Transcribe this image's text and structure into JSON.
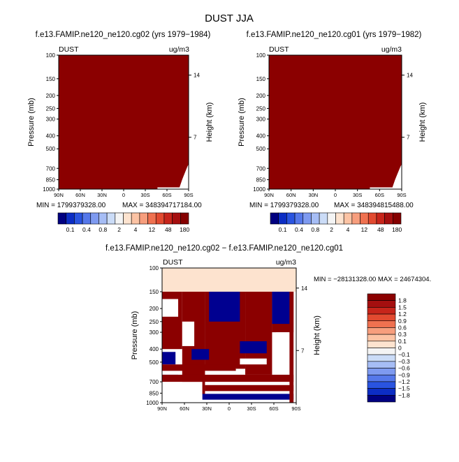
{
  "title": "DUST JJA",
  "panel_left": {
    "title": "f.e13.FAMIP.ne120_ne120.cg02 (yrs 1979−1984)",
    "var": "DUST",
    "units": "ug/m3",
    "min_text": "MIN = 1799379328.00",
    "max_text": "MAX = 348394717184.00"
  },
  "panel_right": {
    "title": "f.e13.FAMIP.ne120_ne120.cg01 (yrs 1979−1982)",
    "var": "DUST",
    "units": "ug/m3",
    "min_text": "MIN = 1799379328.00",
    "max_text": "MAX = 348394815488.00"
  },
  "panel_diff": {
    "title": "f.e13.FAMIP.ne120_ne120.cg02 − f.e13.FAMIP.ne120_ne120.cg01",
    "var": "DUST",
    "units": "ug/m3",
    "min_max_text": "MIN = −28131328.00   MAX = 24674304."
  },
  "chart_data": [
    {
      "type": "heatmap",
      "title": "f.e13.FAMIP.ne120_ne120.cg02 (yrs 1979−1984)",
      "ylabel": "Pressure (mb)",
      "ylabel_right": "Height (km)",
      "x_ticks": [
        "90N",
        "60N",
        "30N",
        "0",
        "30S",
        "60S",
        "90S"
      ],
      "y_ticks": [
        "100",
        "150",
        "200",
        "250",
        "300",
        "400",
        "500",
        "700",
        "850",
        "1000"
      ],
      "y_ticks_right": [
        "14",
        "7"
      ],
      "fill_color": "#8b0000",
      "levels": [
        "0.1",
        "0.4",
        "0.8",
        "2",
        "4",
        "12",
        "48",
        "180"
      ]
    },
    {
      "type": "heatmap",
      "title": "f.e13.FAMIP.ne120_ne120.cg01 (yrs 1979−1982)",
      "ylabel": "Pressure (mb)",
      "ylabel_right": "Height (km)",
      "x_ticks": [
        "90N",
        "60N",
        "30N",
        "0",
        "30S",
        "60S",
        "90S"
      ],
      "y_ticks": [
        "100",
        "150",
        "200",
        "250",
        "300",
        "400",
        "500",
        "700",
        "850",
        "1000"
      ],
      "y_ticks_right": [
        "14",
        "7"
      ],
      "fill_color": "#8b0000",
      "levels": [
        "0.1",
        "0.4",
        "0.8",
        "2",
        "4",
        "12",
        "48",
        "180"
      ]
    },
    {
      "type": "heatmap",
      "title": "f.e13.FAMIP.ne120_ne120.cg02 − f.e13.FAMIP.ne120_ne120.cg01",
      "ylabel": "Pressure (mb)",
      "ylabel_right": "Height (km)",
      "x_ticks": [
        "90N",
        "60N",
        "30N",
        "0",
        "30S",
        "60S",
        "90S"
      ],
      "y_ticks": [
        "100",
        "150",
        "200",
        "250",
        "300",
        "400",
        "500",
        "700",
        "850",
        "1000"
      ],
      "y_ticks_right": [
        "14",
        "7"
      ],
      "levels": [
        "1.8",
        "1.5",
        "1.2",
        "0.9",
        "0.6",
        "0.3",
        "0.1",
        "0",
        "−0.1",
        "−0.3",
        "−0.6",
        "−0.9",
        "−1.2",
        "−1.5",
        "−1.8"
      ],
      "band_above_150_color": "#fde3cf"
    }
  ],
  "colorbar_h": {
    "colors": [
      "#000080",
      "#0c2dc4",
      "#2a54e0",
      "#5578ea",
      "#7e9af0",
      "#a6bdf5",
      "#cbdcf7",
      "#f4f4f4",
      "#fde3cf",
      "#fcc3a4",
      "#f79e7d",
      "#ef7150",
      "#e24a30",
      "#c7251b",
      "#a50f0f",
      "#850000"
    ],
    "labels": [
      "0.1",
      "0.4",
      "0.8",
      "2",
      "4",
      "12",
      "48",
      "180"
    ]
  },
  "colorbar_v": {
    "colors": [
      "#8b0000",
      "#a50f0f",
      "#c7251b",
      "#e24a30",
      "#ef7150",
      "#f79e7d",
      "#fcc3a4",
      "#fde3cf",
      "#f4f4f4",
      "#cbdcf7",
      "#a6bdf5",
      "#7e9af0",
      "#5578ea",
      "#2a54e0",
      "#0c2dc4",
      "#000080"
    ],
    "labels": [
      "1.8",
      "1.5",
      "1.2",
      "0.9",
      "0.6",
      "0.3",
      "0.1",
      "0",
      "−0.1",
      "−0.3",
      "−0.6",
      "−0.9",
      "−1.2",
      "−1.5",
      "−1.8"
    ]
  }
}
